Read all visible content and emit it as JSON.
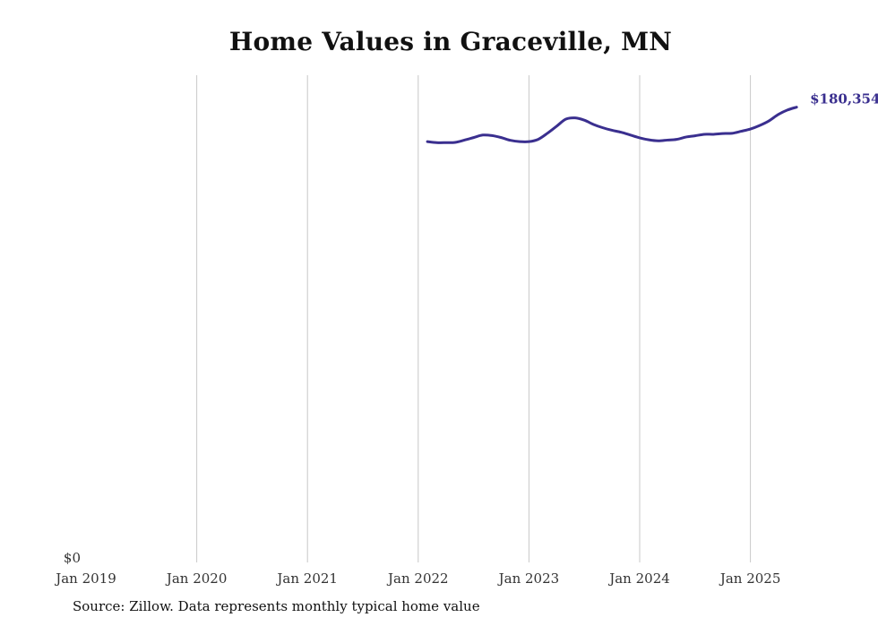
{
  "chart_data": {
    "type": "line",
    "title": "Home Values in Graceville, MN",
    "xlabel": "",
    "ylabel": "",
    "x_tick_labels": [
      "Jan 2019",
      "Jan 2020",
      "Jan 2021",
      "Jan 2022",
      "Jan 2023",
      "Jan 2024",
      "Jan 2025"
    ],
    "y_tick_labels": [
      "$0"
    ],
    "grid": "vertical",
    "xlim": [
      "2019-01",
      "2025-12"
    ],
    "ylim": [
      0,
      193000
    ],
    "line_color": "#3a2f8f",
    "end_label": "$180,354",
    "series": [
      {
        "x": [
          "2022-02",
          "2022-03",
          "2022-04",
          "2022-05",
          "2022-06",
          "2022-07",
          "2022-08",
          "2022-09",
          "2022-10",
          "2022-11",
          "2022-12",
          "2023-01",
          "2023-02",
          "2023-03",
          "2023-04",
          "2023-05",
          "2023-06",
          "2023-07",
          "2023-08",
          "2023-09",
          "2023-10",
          "2023-11",
          "2023-12",
          "2024-01",
          "2024-02",
          "2024-03",
          "2024-04",
          "2024-05",
          "2024-06",
          "2024-07",
          "2024-08",
          "2024-09",
          "2024-10",
          "2024-11",
          "2024-12",
          "2025-01",
          "2025-02",
          "2025-03",
          "2025-04",
          "2025-05",
          "2025-06"
        ],
        "values": [
          166700,
          166300,
          166300,
          166400,
          167300,
          168300,
          169300,
          169100,
          168300,
          167200,
          166700,
          166700,
          167600,
          170000,
          172800,
          175600,
          176100,
          175200,
          173500,
          172200,
          171200,
          170400,
          169300,
          168200,
          167400,
          167000,
          167300,
          167600,
          168500,
          169000,
          169600,
          169600,
          169900,
          170000,
          170800,
          171700,
          173100,
          174900,
          177400,
          179200,
          180354
        ]
      }
    ]
  },
  "source_note": "Source: Zillow. Data represents monthly typical home value"
}
